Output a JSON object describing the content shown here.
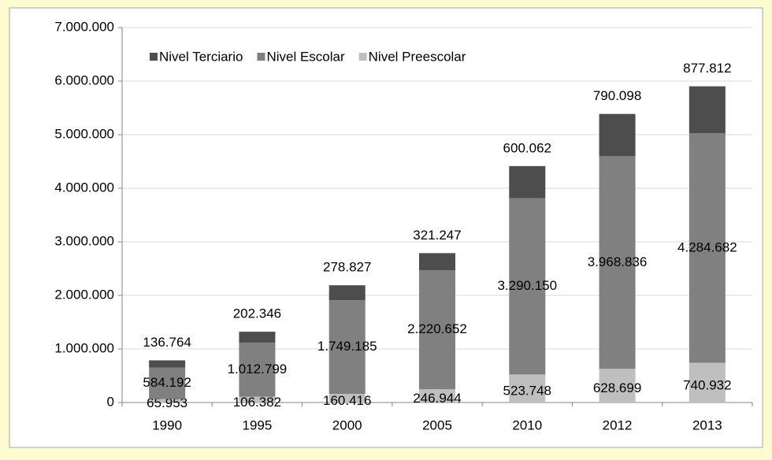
{
  "chart_data": {
    "type": "stacked-bar",
    "categories": [
      "1990",
      "1995",
      "2000",
      "2005",
      "2010",
      "2012",
      "2013"
    ],
    "series": [
      {
        "name": "Nivel Terciario",
        "color": "#4d4d4d",
        "values": [
          136764,
          202346,
          278827,
          321247,
          600062,
          790098,
          877812
        ],
        "value_labels": [
          "136.764",
          "202.346",
          "278.827",
          "321.247",
          "600.062",
          "790.098",
          "877.812"
        ]
      },
      {
        "name": "Nivel Escolar",
        "color": "#808080",
        "values": [
          584192,
          1012799,
          1749185,
          2220652,
          3290150,
          3968836,
          4284682
        ],
        "value_labels": [
          "584.192",
          "1.012.799",
          "1.749.185",
          "2.220.652",
          "3.290.150",
          "3.968.836",
          "4.284.682"
        ]
      },
      {
        "name": "Nivel Preescolar",
        "color": "#bfbfbf",
        "values": [
          65953,
          106382,
          160416,
          246944,
          523748,
          628699,
          740932
        ],
        "value_labels": [
          "65.953",
          "106.382",
          "160.416",
          "246.944",
          "523.748",
          "628.699",
          "740.932"
        ]
      }
    ],
    "ylim": [
      0,
      7000000
    ],
    "yticks": [
      0,
      {
        "value": 1000000,
        "label": "1.000.000"
      },
      {
        "value": 2000000,
        "label": "2.000.000"
      },
      {
        "value": 3000000,
        "label": "3.000.000"
      },
      {
        "value": 4000000,
        "label": "4.000.000"
      },
      {
        "value": 5000000,
        "label": "5.000.000"
      },
      {
        "value": 6000000,
        "label": "6.000.000"
      },
      {
        "value": 7000000,
        "label": "7.000.000"
      }
    ],
    "grid": true,
    "legend": "top-left"
  }
}
